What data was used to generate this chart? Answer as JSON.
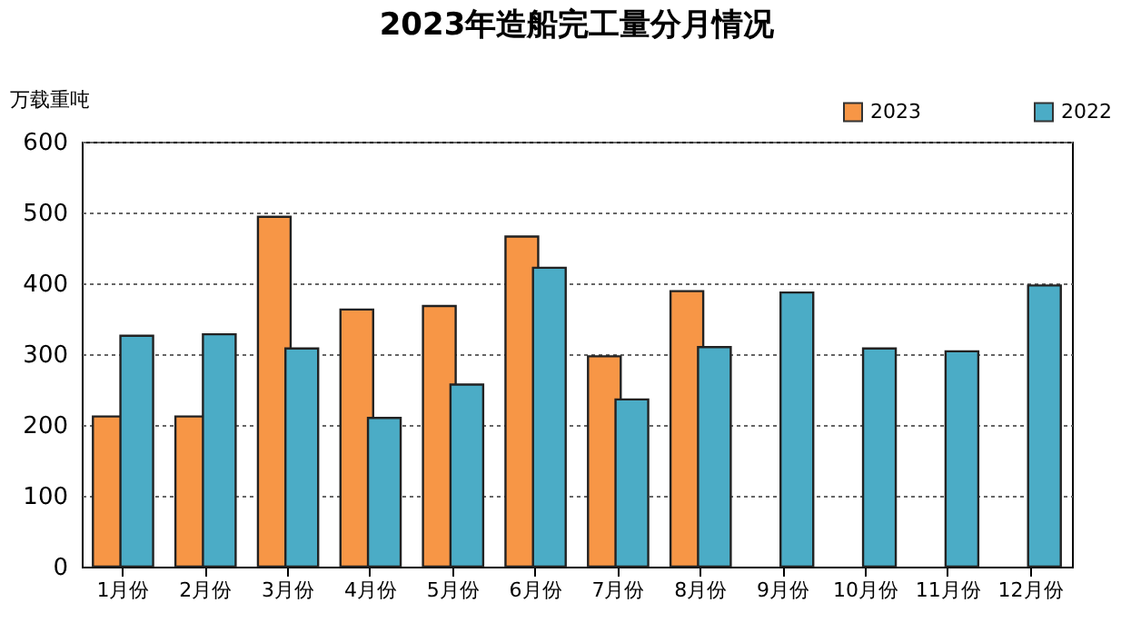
{
  "chart_data": {
    "type": "bar",
    "title": "2023年造船完工量分月情况",
    "ylabel": "万载重吨",
    "categories": [
      "1月份",
      "2月份",
      "3月份",
      "4月份",
      "5月份",
      "6月份",
      "7月份",
      "8月份",
      "9月份",
      "10月份",
      "11月份",
      "12月份"
    ],
    "series": [
      {
        "name": "2023",
        "color": "#f79646",
        "values": [
          212,
          212,
          494,
          363,
          368,
          466,
          297,
          389,
          null,
          null,
          null,
          null
        ]
      },
      {
        "name": "2022",
        "color": "#4bacc6",
        "values": [
          326,
          328,
          308,
          210,
          257,
          422,
          236,
          310,
          387,
          308,
          304,
          397
        ]
      }
    ],
    "ylim": [
      0,
      600
    ],
    "yticks": [
      0,
      100,
      200,
      300,
      400,
      500,
      600
    ],
    "grid": "y",
    "legend": "top right"
  }
}
